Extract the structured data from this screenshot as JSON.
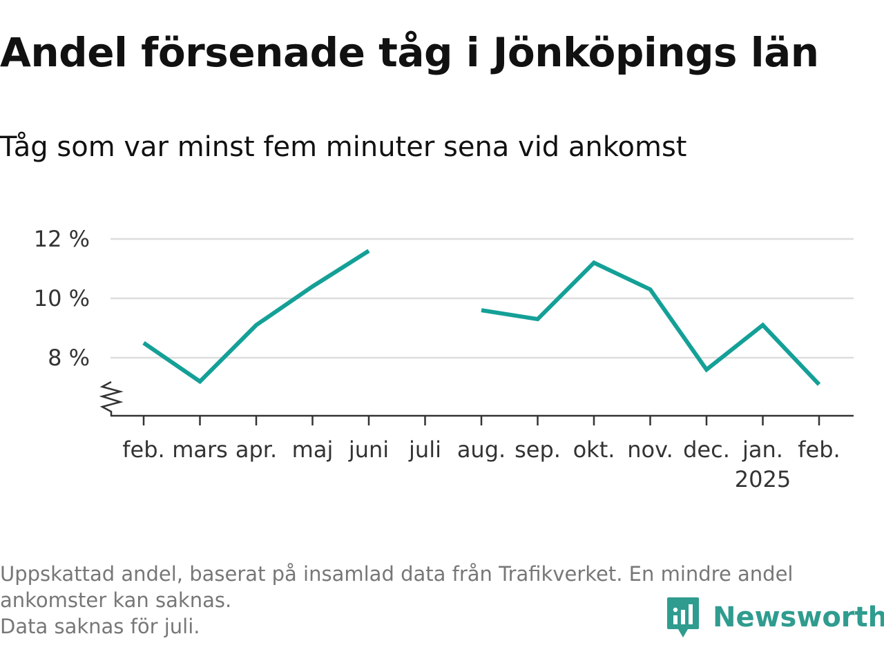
{
  "title": "Andel försenade tåg i Jönköpings län",
  "subtitle": "Tåg som var minst fem minuter sena vid ankomst",
  "footnote": {
    "line1": "Uppskattad andel, baserat på insamlad data från Trafikverket. En mindre andel",
    "line2": "ankomster kan saknas.",
    "line3": "Data saknas för juli."
  },
  "brand": {
    "name": "Newsworthy",
    "icon": "newsworthy-logo-icon",
    "color": "#2f9c8f"
  },
  "colors": {
    "line": "#14a097",
    "grid": "#dddddd",
    "axis": "#333333"
  },
  "chart_data": {
    "type": "line",
    "title": "Andel försenade tåg i Jönköpings län",
    "subtitle": "Tåg som var minst fem minuter sena vid ankomst",
    "categories": [
      "feb.",
      "mars",
      "apr.",
      "maj",
      "juni",
      "juli",
      "aug.",
      "sep.",
      "okt.",
      "nov.",
      "dec.",
      "jan.",
      "feb."
    ],
    "year_label": {
      "category_index": 11,
      "text": "2025"
    },
    "series": [
      {
        "values": [
          8.5,
          7.2,
          9.1,
          10.4,
          11.6,
          null,
          9.6,
          9.3,
          11.2,
          10.3,
          7.6,
          9.1,
          7.1
        ]
      }
    ],
    "y_ticks": [
      8,
      10,
      12
    ],
    "y_tick_labels": [
      "8 %",
      "10 %",
      "12 %"
    ],
    "ylim": [
      6,
      12.5
    ],
    "axis_break": true,
    "grid": true,
    "legend": "none"
  }
}
